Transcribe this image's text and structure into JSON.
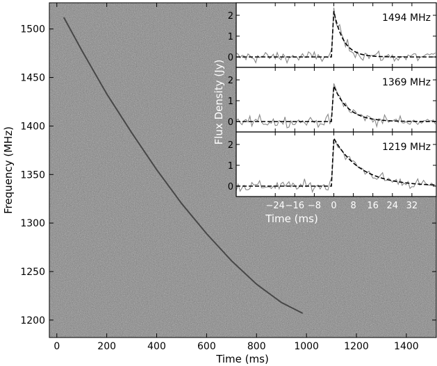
{
  "chart_data": [
    {
      "type": "heatmap",
      "title": "",
      "xlabel": "Time (ms)",
      "ylabel": "Frequency (MHz)",
      "xlim": [
        -30,
        1520
      ],
      "ylim": [
        1182,
        1527
      ],
      "x_ticks": [
        "0",
        "200",
        "400",
        "600",
        "800",
        "1000",
        "1200",
        "1400"
      ],
      "y_ticks": [
        "1200",
        "1250",
        "1300",
        "1350",
        "1400",
        "1450",
        "1500"
      ],
      "x_tick_values": [
        0,
        200,
        400,
        600,
        800,
        1000,
        1200,
        1400
      ],
      "y_tick_values": [
        1200,
        1250,
        1300,
        1350,
        1400,
        1450,
        1500
      ],
      "colormap": "grayscale noise",
      "dispersed_sweep": {
        "description_units": "time ms vs frequency MHz",
        "points": [
          [
            28,
            1512
          ],
          [
            100,
            1478
          ],
          [
            200,
            1433
          ],
          [
            300,
            1393
          ],
          [
            400,
            1355
          ],
          [
            500,
            1320
          ],
          [
            600,
            1289
          ],
          [
            700,
            1261
          ],
          [
            800,
            1237
          ],
          [
            900,
            1218
          ],
          [
            985,
            1207
          ]
        ]
      }
    },
    {
      "type": "line",
      "label": "1494 MHz",
      "ylabel": "Flux Density (Jy)",
      "xlabel": "Time (ms)",
      "xlim": [
        -40,
        42
      ],
      "ylim": [
        -0.5,
        2.6
      ],
      "y_ticks": [
        "0",
        "1",
        "2"
      ],
      "y_tick_values": [
        0,
        1,
        2
      ],
      "x_ticks": [],
      "model": {
        "onset": 0,
        "peak": 2.2,
        "tau": 4
      },
      "observed_noise": 0.2
    },
    {
      "type": "line",
      "label": "1369 MHz",
      "ylabel": "Flux Density (Jy)",
      "xlabel": "Time (ms)",
      "xlim": [
        -40,
        42
      ],
      "ylim": [
        -0.5,
        2.6
      ],
      "y_ticks": [
        "0",
        "1",
        "2"
      ],
      "y_tick_values": [
        0,
        1,
        2
      ],
      "x_ticks": [],
      "model": {
        "onset": 0,
        "peak": 1.7,
        "tau": 6
      },
      "observed_noise": 0.18
    },
    {
      "type": "line",
      "label": "1219 MHz",
      "ylabel": "Flux Density (Jy)",
      "xlabel": "Time (ms)",
      "xlim": [
        -40,
        42
      ],
      "ylim": [
        -0.5,
        2.6
      ],
      "y_ticks": [
        "0",
        "1",
        "2"
      ],
      "y_tick_values": [
        0,
        1,
        2
      ],
      "x_ticks": [
        "−24",
        "−16",
        "−8",
        "0",
        "8",
        "16",
        "24",
        "32"
      ],
      "x_tick_values": [
        -24,
        -16,
        -8,
        0,
        8,
        16,
        24,
        32
      ],
      "model": {
        "onset": 0,
        "peak": 2.3,
        "tau": 11
      },
      "observed_noise": 0.18
    }
  ]
}
